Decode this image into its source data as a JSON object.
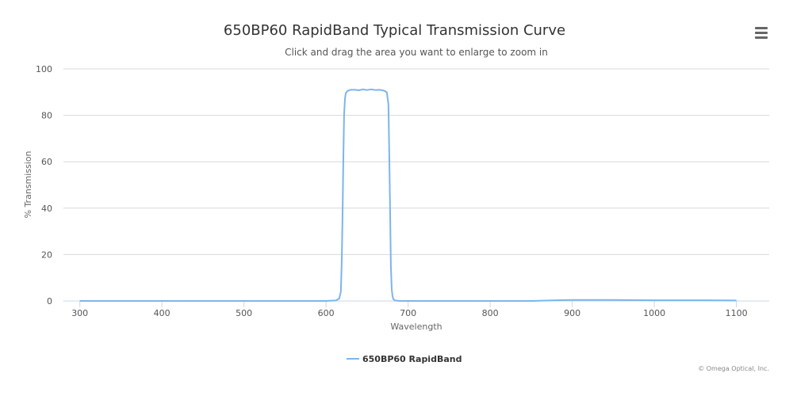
{
  "header": {
    "title": "650BP60 RapidBand Typical Transmission Curve",
    "subtitle": "Click and drag the area you want to enlarge to zoom in",
    "menu_icon": "hamburger-menu-icon"
  },
  "credits": "© Omega Optical, Inc.",
  "colors": {
    "series": "#7cb5ec",
    "grid": "#d8d8d8",
    "axis": "#ccd6eb"
  },
  "chart_data": {
    "type": "line",
    "title": "650BP60 RapidBand Typical Transmission Curve",
    "subtitle": "Click and drag the area you want to enlarge to zoom in",
    "xlabel": "Wavelength",
    "ylabel": "% Transmission",
    "xlim": [
      280,
      1140
    ],
    "ylim": [
      0,
      100
    ],
    "x_ticks": [
      300,
      400,
      500,
      600,
      700,
      800,
      900,
      1000,
      1100
    ],
    "y_ticks": [
      0,
      20,
      40,
      60,
      80,
      100
    ],
    "grid": "horizontal",
    "legend": "bottom-center",
    "series": [
      {
        "name": "650BP60 RapidBand",
        "color": "#7cb5ec",
        "x": [
          300,
          500,
          600,
          612,
          616,
          618,
          619,
          620,
          621,
          622,
          623,
          624,
          626,
          630,
          635,
          640,
          645,
          650,
          655,
          660,
          665,
          670,
          674,
          676,
          677,
          678,
          679,
          680,
          681,
          682,
          684,
          690,
          750,
          850,
          880,
          900,
          950,
          1000,
          1050,
          1100
        ],
        "y": [
          0,
          0,
          0,
          0.2,
          1,
          4,
          15,
          35,
          60,
          80,
          87,
          89.5,
          90.5,
          91,
          91,
          90.8,
          91.2,
          90.9,
          91.2,
          90.9,
          91,
          90.7,
          90,
          85,
          65,
          40,
          15,
          5,
          2,
          0.8,
          0.2,
          0,
          0,
          0,
          0.3,
          0.4,
          0.4,
          0.3,
          0.3,
          0.2
        ]
      }
    ]
  }
}
